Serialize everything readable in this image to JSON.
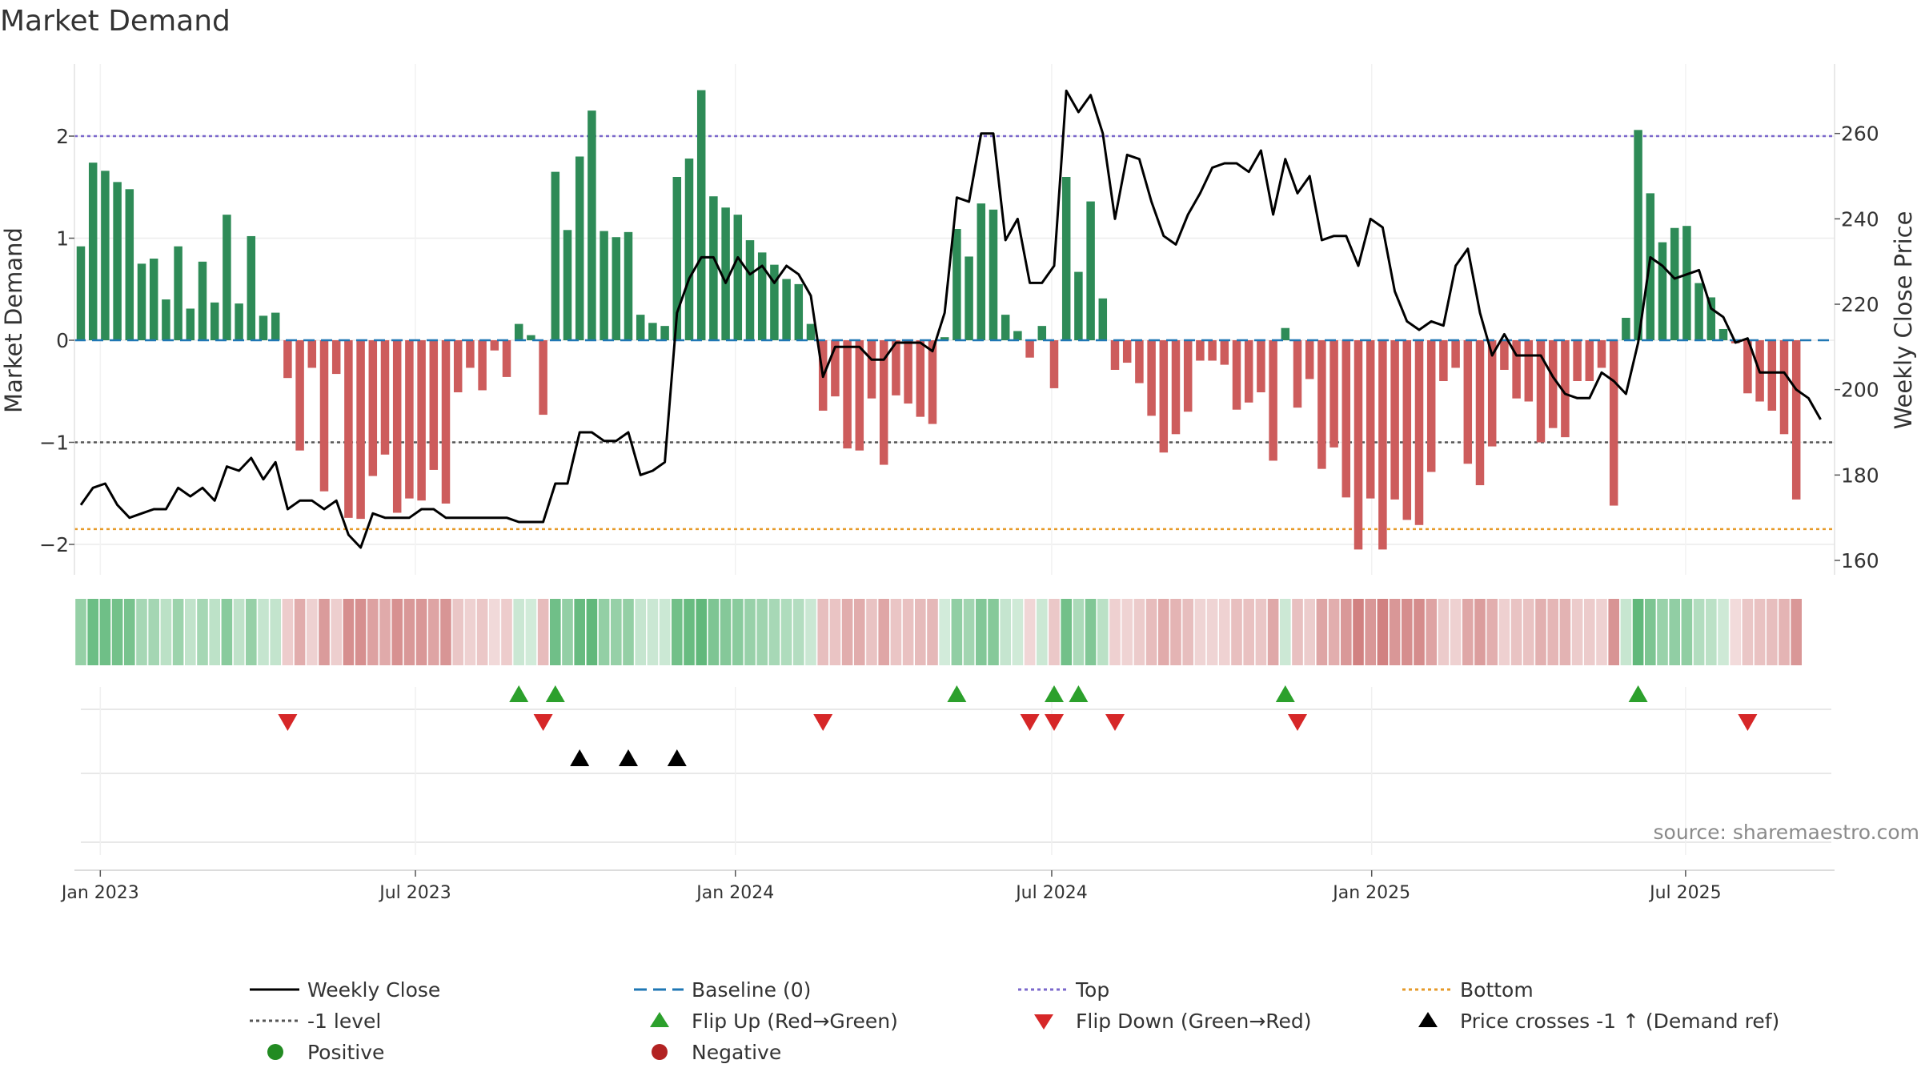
{
  "chart_data": {
    "type": "bar",
    "title": "Market Demand",
    "ylabel": "Market Demand",
    "y2label": "Weekly Close Price",
    "ylim": [
      -2.3,
      2.6
    ],
    "y2lim": [
      157.5,
      272
    ],
    "yticks": [
      2,
      1,
      0,
      -1,
      -2
    ],
    "ytick_labels": [
      "2",
      "1",
      "0",
      "−1",
      "−2"
    ],
    "y2ticks": [
      260,
      240,
      220,
      200,
      180,
      160
    ],
    "y2tick_labels": [
      "260",
      "240",
      "220",
      "200",
      "180",
      "160"
    ],
    "xticks": [
      {
        "label": "Jan 2023",
        "week": 1.6
      },
      {
        "label": "Jul 2023",
        "week": 27.5
      },
      {
        "label": "Jan 2024",
        "week": 53.8
      },
      {
        "label": "Jul 2024",
        "week": 79.8
      },
      {
        "label": "Jan 2025",
        "week": 106.1
      },
      {
        "label": "Jul 2025",
        "week": 131.9
      }
    ],
    "reference_lines": {
      "top": 2.0,
      "bottom": -1.85,
      "minus_one": -1.0,
      "baseline": 0
    },
    "demand": [
      0.92,
      1.74,
      1.66,
      1.55,
      1.48,
      0.75,
      0.8,
      0.4,
      0.92,
      0.31,
      0.77,
      0.37,
      1.23,
      0.36,
      1.02,
      0.24,
      0.27,
      -0.37,
      -1.08,
      -0.27,
      -1.48,
      -0.33,
      -1.74,
      -1.75,
      -1.33,
      -1.12,
      -1.69,
      -1.55,
      -1.57,
      -1.27,
      -1.6,
      -0.51,
      -0.27,
      -0.49,
      -0.1,
      -0.36,
      0.16,
      0.05,
      -0.73,
      1.65,
      1.08,
      1.8,
      2.25,
      1.07,
      1.01,
      1.06,
      0.25,
      0.17,
      0.14,
      1.6,
      1.78,
      2.45,
      1.41,
      1.3,
      1.23,
      0.98,
      0.86,
      0.74,
      0.6,
      0.55,
      0.16,
      -0.69,
      -0.55,
      -1.06,
      -1.08,
      -0.57,
      -1.22,
      -0.54,
      -0.62,
      -0.75,
      -0.82,
      0.03,
      1.09,
      0.82,
      1.34,
      1.28,
      0.25,
      0.09,
      -0.17,
      0.14,
      -0.47,
      1.6,
      0.67,
      1.36,
      0.41,
      -0.29,
      -0.22,
      -0.42,
      -0.74,
      -1.1,
      -0.92,
      -0.7,
      -0.2,
      -0.2,
      -0.24,
      -0.68,
      -0.61,
      -0.51,
      -1.18,
      0.12,
      -0.66,
      -0.38,
      -1.26,
      -1.05,
      -1.54,
      -2.05,
      -1.55,
      -2.05,
      -1.56,
      -1.76,
      -1.81,
      -1.29,
      -0.4,
      -0.27,
      -1.21,
      -1.42,
      -1.04,
      -0.29,
      -0.57,
      -0.6,
      -1.0,
      -0.86,
      -0.95,
      -0.4,
      -0.4,
      -0.27,
      -1.62,
      0.22,
      2.06,
      1.44,
      0.96,
      1.1,
      1.12,
      0.56,
      0.42,
      0.11,
      -0.03,
      -0.52,
      -0.6,
      -0.69,
      -0.92,
      -1.56
    ],
    "price": [
      173,
      177,
      178,
      173,
      170,
      171,
      172,
      172,
      177,
      175,
      177,
      174,
      182,
      181,
      184,
      179,
      183,
      172,
      174,
      174,
      172,
      174,
      166,
      163,
      171,
      170,
      170,
      170,
      172,
      172,
      170,
      170,
      170,
      170,
      170,
      170,
      169,
      169,
      169,
      178,
      178,
      190,
      190,
      188,
      188,
      190,
      180,
      181,
      183,
      218,
      226,
      231,
      231,
      225,
      231,
      227,
      229,
      225,
      229,
      227,
      222,
      203,
      210,
      210,
      210,
      207,
      207,
      211,
      211,
      211,
      209,
      218,
      245,
      244,
      260,
      260,
      235,
      240,
      225,
      225,
      229,
      270,
      265,
      269,
      260,
      240,
      255,
      254,
      244,
      236,
      234,
      241,
      246,
      252,
      253,
      253,
      251,
      256,
      241,
      254,
      246,
      250,
      235,
      236,
      236,
      229,
      240,
      238,
      223,
      216,
      214,
      216,
      215,
      229,
      233,
      218,
      208,
      213,
      208,
      208,
      208,
      203,
      199,
      198,
      198,
      204,
      202,
      199,
      211,
      231,
      229,
      226,
      227,
      228,
      219,
      217,
      211,
      212,
      204,
      204,
      204,
      200,
      198,
      193
    ],
    "strip_shades": [
      0.55,
      0.9,
      0.88,
      0.84,
      0.8,
      0.4,
      0.42,
      0.22,
      0.49,
      0.17,
      0.41,
      0.2,
      0.65,
      0.19,
      0.54,
      0.13,
      0.15,
      0.18,
      0.53,
      0.13,
      0.72,
      0.16,
      0.85,
      0.85,
      0.65,
      0.55,
      0.82,
      0.75,
      0.76,
      0.62,
      0.78,
      0.25,
      0.13,
      0.24,
      0.05,
      0.18,
      0.09,
      0.03,
      0.36,
      0.87,
      0.57,
      0.95,
      1.0,
      0.57,
      0.54,
      0.56,
      0.13,
      0.09,
      0.08,
      0.85,
      0.94,
      1.0,
      0.75,
      0.69,
      0.65,
      0.52,
      0.46,
      0.39,
      0.32,
      0.29,
      0.09,
      0.34,
      0.27,
      0.52,
      0.53,
      0.28,
      0.6,
      0.26,
      0.3,
      0.37,
      0.4,
      0.02,
      0.58,
      0.44,
      0.71,
      0.68,
      0.13,
      0.05,
      0.08,
      0.08,
      0.23,
      0.85,
      0.36,
      0.72,
      0.22,
      0.14,
      0.11,
      0.2,
      0.36,
      0.54,
      0.45,
      0.34,
      0.1,
      0.1,
      0.12,
      0.33,
      0.3,
      0.25,
      0.58,
      0.07,
      0.32,
      0.19,
      0.61,
      0.51,
      0.75,
      1.0,
      0.76,
      1.0,
      0.76,
      0.86,
      0.88,
      0.63,
      0.2,
      0.13,
      0.59,
      0.69,
      0.51,
      0.14,
      0.28,
      0.29,
      0.49,
      0.42,
      0.46,
      0.2,
      0.2,
      0.13,
      0.79,
      0.12,
      1.0,
      0.76,
      0.51,
      0.58,
      0.59,
      0.3,
      0.22,
      0.06,
      0.02,
      0.25,
      0.29,
      0.34,
      0.45,
      0.76
    ],
    "flip_up_weeks": [
      36,
      39,
      72,
      80,
      82,
      99,
      128
    ],
    "flip_down_weeks": [
      17,
      38,
      61,
      78,
      80,
      85,
      100,
      137
    ],
    "price_cross_weeks": [
      41,
      45,
      49
    ],
    "source_text": "source: sharemaestro.com",
    "colors": {
      "pos_bar": "#2e8b57",
      "neg_bar": "#cd5c5c",
      "price_line": "#000000",
      "baseline": "#1f77b4",
      "top_line": "#7b68cc",
      "bottom_line": "#e69a28",
      "minus_one_line": "#555555",
      "flip_up": "#2ca02c",
      "flip_down": "#d62728",
      "cross": "#000000",
      "positive_dot": "#228b22",
      "negative_dot": "#b22222"
    },
    "legend": [
      {
        "label": "Weekly Close",
        "kind": "line-solid"
      },
      {
        "label": "Baseline (0)",
        "kind": "line-dash"
      },
      {
        "label": "Top",
        "kind": "line-dot-top"
      },
      {
        "label": "Bottom",
        "kind": "line-dot-bottom"
      },
      {
        "label": "-1 level",
        "kind": "line-dot-gray"
      },
      {
        "label": "Flip Up (Red→Green)",
        "kind": "tri-up-green"
      },
      {
        "label": "Flip Down (Green→Red)",
        "kind": "tri-down-red"
      },
      {
        "label": "Price crosses -1 ↑ (Demand ref)",
        "kind": "tri-up-black"
      },
      {
        "label": "Positive",
        "kind": "dot-green"
      },
      {
        "label": "Negative",
        "kind": "dot-red"
      }
    ]
  }
}
